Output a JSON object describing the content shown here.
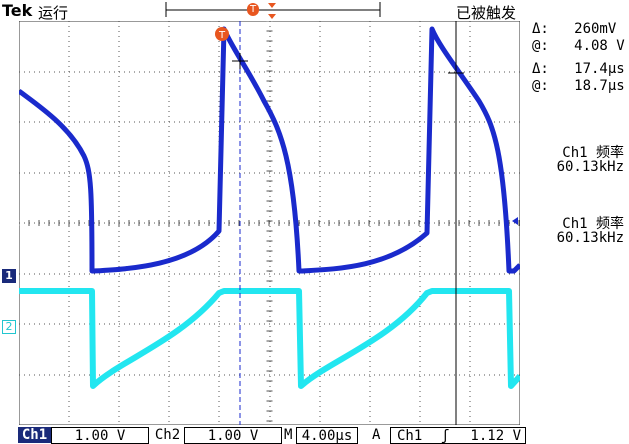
{
  "topbar": {
    "brand": "Tek",
    "run_state": "运行",
    "trigger_state": "已被触发"
  },
  "markers": {
    "trigger_position": "T",
    "ch1": "1",
    "ch2": "2"
  },
  "cursor_readout": {
    "v_delta": "Δ:   260mV",
    "v_at": "@:   4.08 V",
    "t_delta": "Δ:   17.4μs",
    "t_at": "@:   18.7μs"
  },
  "measurements": [
    {
      "label": "Ch1 频率",
      "value": "60.13kHz"
    },
    {
      "label": "Ch1 频率",
      "value": "60.13kHz"
    }
  ],
  "bottombar": {
    "ch1_label": "Ch1",
    "ch1_scale": "1.00 V",
    "ch2_label": "Ch2",
    "ch2_scale": "1.00 V",
    "timebase_label": "M",
    "timebase": "4.00μs",
    "acq": "A",
    "trigger_source": "Ch1",
    "trigger_slope": "ʃ",
    "trigger_level": "1.12 V"
  },
  "colors": {
    "ch1": "#1a2acc",
    "ch2": "#22e6f0",
    "grid": "#555555",
    "trigger_marker": "#e8561f"
  }
}
